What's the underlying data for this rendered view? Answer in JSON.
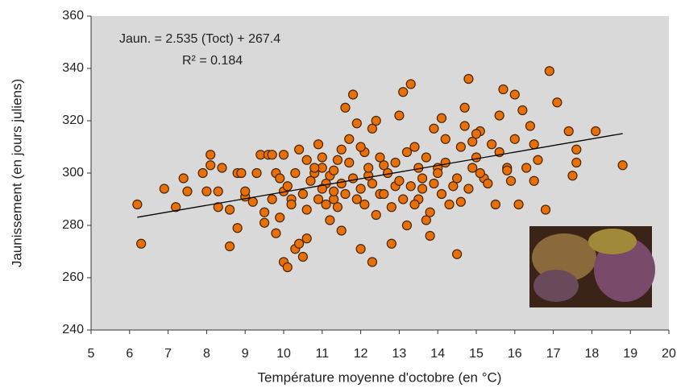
{
  "chart_data": {
    "type": "scatter",
    "title": null,
    "annotations": [
      "Jaun. = 2.535 (Toct) + 267.4",
      "R² = 0.184"
    ],
    "xlabel": "Température moyenne d'octobre (en °C)",
    "ylabel": "Jaunissement (en jours juliens)",
    "xlim": [
      5,
      20
    ],
    "ylim": [
      240,
      360
    ],
    "xticks": [
      5,
      6,
      7,
      8,
      9,
      10,
      11,
      12,
      13,
      14,
      15,
      16,
      17,
      18,
      19,
      20
    ],
    "yticks": [
      240,
      260,
      280,
      300,
      320,
      340,
      360
    ],
    "grid": false,
    "background": "#d9d9d9",
    "color": "#e8700a",
    "trendline": {
      "x": [
        6.2,
        18.8
      ],
      "y": [
        283.1,
        315.1
      ],
      "color": "#000000"
    },
    "x": [
      6.2,
      6.3,
      6.9,
      7.2,
      7.4,
      7.5,
      7.9,
      8.0,
      8.1,
      8.1,
      8.3,
      8.3,
      8.4,
      8.6,
      8.6,
      8.8,
      8.8,
      8.9,
      9.0,
      9.0,
      9.2,
      9.3,
      9.4,
      9.5,
      9.6,
      9.7,
      9.8,
      9.8,
      9.9,
      10.0,
      10.0,
      10.1,
      10.0,
      10.2,
      10.3,
      10.4,
      10.5,
      10.6,
      10.4,
      10.6,
      10.8,
      10.9,
      11.0,
      11.1,
      11.2,
      11.3,
      11.4,
      11.5,
      11.6,
      11.7,
      11.8,
      11.9,
      12.0,
      12.1,
      12.2,
      12.3,
      12.3,
      12.4,
      12.5,
      12.6,
      12.8,
      12.9,
      13.0,
      13.1,
      13.3,
      13.2,
      13.4,
      13.5,
      13.6,
      13.7,
      13.8,
      13.9,
      14.0,
      14.1,
      14.2,
      14.4,
      14.5,
      14.6,
      14.7,
      14.7,
      14.8,
      14.9,
      15.0,
      15.1,
      15.2,
      15.4,
      15.5,
      15.6,
      15.7,
      15.8,
      15.9,
      16.0,
      16.1,
      16.2,
      16.3,
      16.4,
      16.5,
      16.5,
      16.8,
      16.9,
      17.1,
      17.4,
      17.5,
      17.6,
      17.6,
      18.1,
      18.8,
      9.5,
      9.7,
      9.9,
      10.1,
      10.2,
      10.3,
      10.5,
      10.6,
      10.7,
      10.8,
      10.9,
      11.0,
      11.0,
      11.1,
      11.2,
      11.3,
      11.3,
      11.4,
      11.5,
      11.5,
      11.6,
      11.7,
      11.8,
      11.9,
      12.0,
      12.0,
      12.1,
      12.2,
      12.3,
      12.4,
      12.5,
      12.6,
      12.7,
      12.8,
      12.9,
      13.0,
      13.1,
      13.2,
      13.3,
      13.4,
      13.5,
      13.6,
      13.7,
      13.8,
      13.9,
      14.0,
      14.1,
      14.2,
      14.3,
      14.5,
      14.6,
      14.8,
      14.9,
      15.0,
      15.1,
      15.3,
      15.6,
      15.8,
      16.0,
      16.6
    ],
    "values": [
      288,
      273,
      294,
      287,
      298,
      293,
      300,
      293,
      307,
      303,
      293,
      287,
      302,
      286,
      272,
      300,
      279,
      300,
      291,
      293,
      289,
      300,
      307,
      281,
      307,
      307,
      300,
      277,
      298,
      307,
      266,
      264,
      293,
      290,
      271,
      273,
      268,
      275,
      309,
      305,
      300,
      311,
      302,
      296,
      282,
      290,
      305,
      278,
      325,
      313,
      330,
      319,
      271,
      308,
      299,
      266,
      317,
      320,
      292,
      303,
      273,
      295,
      322,
      331,
      334,
      280,
      310,
      290,
      298,
      282,
      276,
      317,
      302,
      321,
      313,
      295,
      269,
      289,
      318,
      325,
      336,
      312,
      306,
      316,
      298,
      311,
      288,
      322,
      332,
      302,
      297,
      330,
      288,
      324,
      302,
      318,
      297,
      311,
      286,
      339,
      327,
      316,
      299,
      309,
      304,
      316,
      303,
      285,
      290,
      283,
      295,
      288,
      300,
      292,
      286,
      297,
      302,
      290,
      294,
      306,
      288,
      299,
      293,
      301,
      287,
      296,
      309,
      292,
      304,
      298,
      290,
      294,
      310,
      288,
      302,
      296,
      284,
      306,
      292,
      300,
      287,
      304,
      297,
      290,
      308,
      295,
      288,
      302,
      294,
      306,
      285,
      296,
      300,
      292,
      304,
      288,
      298,
      310,
      294,
      302,
      315,
      300,
      296,
      308,
      301,
      313,
      305
    ]
  }
}
